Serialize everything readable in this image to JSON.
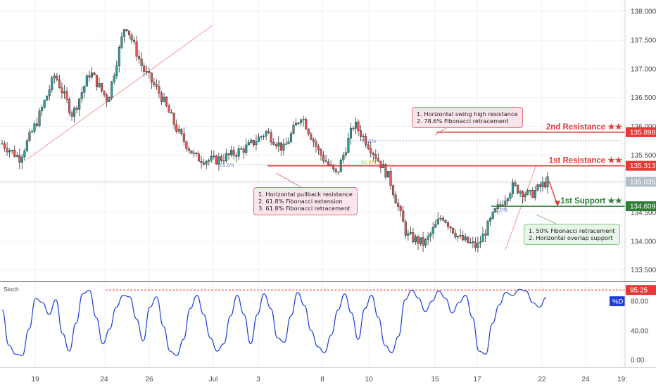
{
  "chart_data": {
    "type": "candlestick",
    "instrument": "",
    "price_axis": {
      "ylim": [
        133.3,
        138.15
      ],
      "ticks": [
        "138.000",
        "137.500",
        "137.000",
        "136.500",
        "136.000",
        "135.500",
        "135.000",
        "134.500",
        "134.000",
        "133.500"
      ]
    },
    "time_axis": {
      "labels": [
        "19",
        "24",
        "26",
        "Jul",
        "3",
        "8",
        "10",
        "15",
        "17",
        "22",
        "24",
        "19:"
      ]
    },
    "price_labels": [
      {
        "text": "135.898",
        "value": 135.898,
        "color": "#e53935"
      },
      {
        "text": "135.313",
        "value": 135.313,
        "color": "#e53935"
      },
      {
        "text": "135.035",
        "value": 135.035,
        "color": "#b0bec5"
      },
      {
        "text": "134.609",
        "value": 134.609,
        "color": "#2e7d32"
      }
    ],
    "levels": [
      {
        "label": "2nd Resistance ★★",
        "value": 135.898,
        "color": "#e53935"
      },
      {
        "label": "1st Resistance ★★",
        "value": 135.313,
        "color": "#e53935"
      },
      {
        "label": "1st Support ★★",
        "value": 134.609,
        "color": "#2e7d32"
      }
    ],
    "fib_labels": {
      "left_618": "61.8%",
      "mid_618": "61.8%",
      "top_786": "78.6%",
      "support_50": "50.0%"
    },
    "annotations": {
      "resistance_box": [
        "1. Horizontal swing high resistance",
        "2. 78.6% Fibonacci retracement"
      ],
      "pullback_box": [
        "1. Horizontal pullback resistance",
        "2. 61.8% Fibonacci extension",
        "3. 61.8% Fibonacci retracement"
      ],
      "support_box": [
        "1. 50% Fibonacci retracement",
        "2. Horizontal overlap support"
      ]
    },
    "price_path": [
      135.7,
      135.45,
      136.1,
      136.9,
      136.2,
      136.95,
      136.45,
      137.8,
      137.0,
      136.55,
      135.9,
      135.45,
      135.4,
      135.5,
      135.65,
      135.9,
      135.6,
      136.2,
      135.55,
      135.15,
      136.05,
      135.6,
      135.1,
      134.1,
      133.95,
      134.45,
      134.05,
      133.9,
      134.5,
      134.95,
      134.8,
      135.05
    ],
    "stoch": {
      "title": "Stoch",
      "ylim": [
        -10,
        105
      ],
      "ticks": [
        "80.00",
        "40.00",
        "0.00"
      ],
      "marked_level": {
        "text": "95.25",
        "value": 95.25,
        "color": "#e53935"
      },
      "d_label": "%D",
      "values": [
        68,
        20,
        8,
        6,
        42,
        84,
        78,
        62,
        82,
        36,
        12,
        50,
        90,
        95,
        58,
        22,
        42,
        72,
        88,
        86,
        56,
        26,
        72,
        86,
        46,
        12,
        6,
        28,
        70,
        88,
        62,
        30,
        12,
        22,
        60,
        88,
        62,
        22,
        62,
        90,
        70,
        30,
        24,
        60,
        92,
        74,
        40,
        18,
        10,
        34,
        68,
        90,
        64,
        28,
        70,
        88,
        58,
        20,
        10,
        32,
        82,
        95,
        84,
        66,
        80,
        94,
        84,
        64,
        78,
        88,
        58,
        12,
        8,
        50,
        75,
        92,
        88,
        96,
        94,
        78,
        72,
        85
      ]
    }
  }
}
